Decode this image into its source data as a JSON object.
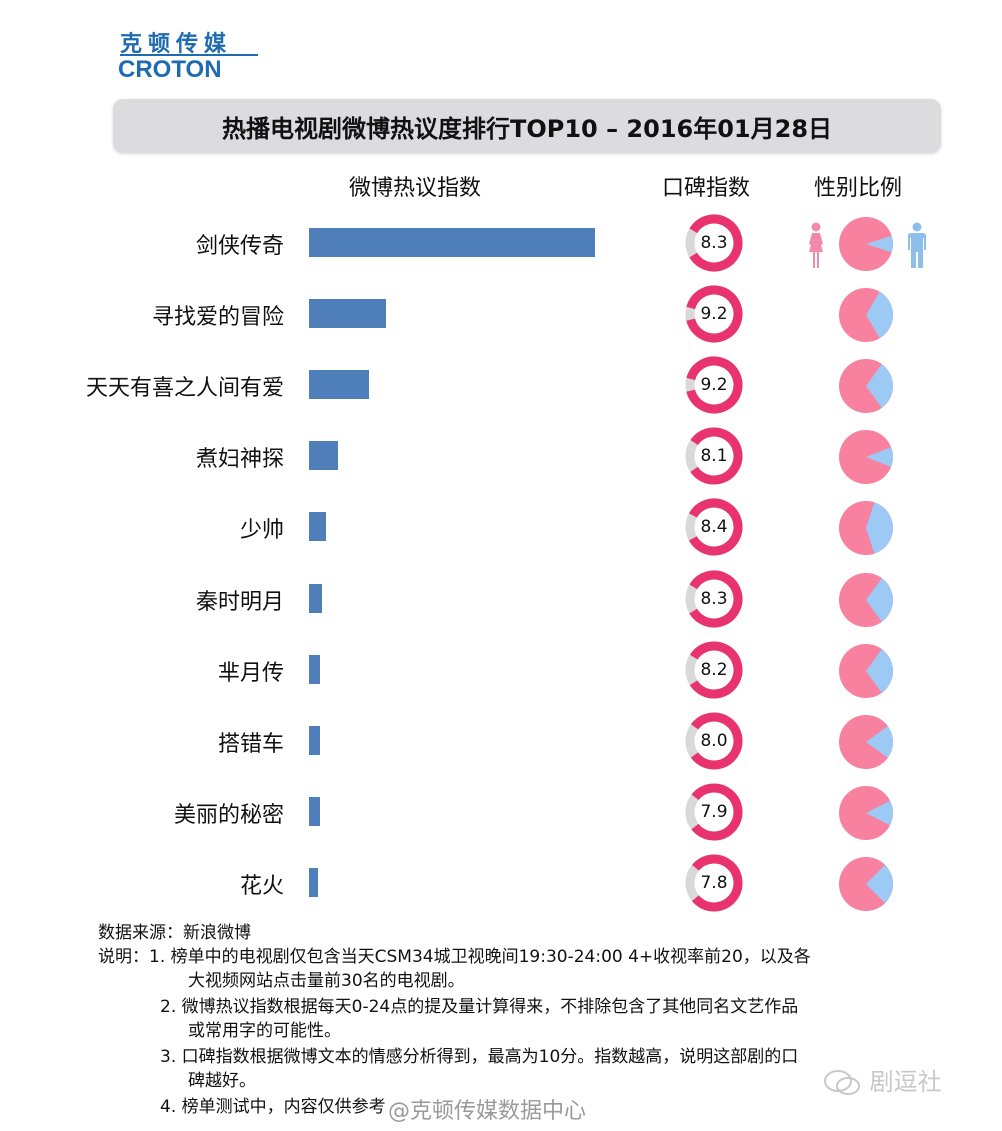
{
  "logo": {
    "cn": "克顿传媒",
    "en": "CROTON",
    "brand_color": "#1f6bb0"
  },
  "title": "热播电视剧微博热议度排行TOP10 – 2016年01月28日",
  "columns": {
    "weibo": "微博热议指数",
    "reputation": "口碑指数",
    "gender": "性别比例"
  },
  "legend_icons": {
    "female": "female-icon",
    "male": "male-icon"
  },
  "colors": {
    "bar": "#4f7fbb",
    "donut_fill": "#e8336f",
    "donut_rest": "#d9d9d9",
    "female": "#f7819f",
    "male": "#9ccaf5"
  },
  "rows": [
    {
      "name": "剑侠传奇",
      "score": "8.3"
    },
    {
      "name": "寻找爱的冒险",
      "score": "9.2"
    },
    {
      "name": "天天有喜之人间有爱",
      "score": "9.2"
    },
    {
      "name": "煮妇神探",
      "score": "8.1"
    },
    {
      "name": "少帅",
      "score": "8.4"
    },
    {
      "name": "秦时明月",
      "score": "8.3"
    },
    {
      "name": "芈月传",
      "score": "8.2"
    },
    {
      "name": "搭错车",
      "score": "8.0"
    },
    {
      "name": "美丽的秘密",
      "score": "7.9"
    },
    {
      "name": "花火",
      "score": "7.8"
    }
  ],
  "notes": {
    "source": "数据来源：新浪微博",
    "lines": [
      "说明：1.  榜单中的电视剧仅包含当天CSM34城卫视晚间19:30-24:00 4+收视率前20，以及各",
      "大视频网站点击量前30名的电视剧。",
      "2.  微博热议指数根据每天0-24点的提及量计算得来，不排除包含了其他同名文艺作品",
      "或常用字的可能性。",
      "3.  口碑指数根据微博文本的情感分析得到，最高为10分。指数越高，说明这部剧的口",
      "碑越好。",
      "4.  榜单测试中，内容仅供参考"
    ]
  },
  "watermarks": {
    "weibo": "@克顿传媒数据中心",
    "wechat": "剧逗社"
  },
  "chart_data": [
    {
      "type": "bar",
      "title": "微博热议指数",
      "orientation": "horizontal",
      "categories": [
        "剑侠传奇",
        "寻找爱的冒险",
        "天天有喜之人间有爱",
        "煮妇神探",
        "少帅",
        "秦时明月",
        "芈月传",
        "搭错车",
        "美丽的秘密",
        "花火"
      ],
      "values": [
        100,
        27,
        21,
        10,
        6,
        4.5,
        4,
        3.8,
        3.8,
        3.2
      ],
      "xlabel": "",
      "ylabel": "",
      "note": "relative values estimated from bar lengths (max = 100); no axis shown"
    },
    {
      "type": "pie",
      "subtype": "donut",
      "title": "口碑指数",
      "categories": [
        "剑侠传奇",
        "寻找爱的冒险",
        "天天有喜之人间有爱",
        "煮妇神探",
        "少帅",
        "秦时明月",
        "芈月传",
        "搭错车",
        "美丽的秘密",
        "花火"
      ],
      "values": [
        8.3,
        9.2,
        9.2,
        8.1,
        8.4,
        8.3,
        8.2,
        8.0,
        7.9,
        7.8
      ],
      "max": 10
    },
    {
      "type": "pie",
      "title": "性别比例",
      "categories": [
        "剑侠传奇",
        "寻找爱的冒险",
        "天天有喜之人间有爱",
        "煮妇神探",
        "少帅",
        "秦时明月",
        "芈月传",
        "搭错车",
        "美丽的秘密",
        "花火"
      ],
      "series": [
        {
          "name": "女",
          "values": [
            90,
            67,
            70,
            88,
            60,
            70,
            70,
            80,
            85,
            75
          ]
        },
        {
          "name": "男",
          "values": [
            10,
            33,
            30,
            12,
            40,
            30,
            30,
            20,
            15,
            25
          ]
        }
      ],
      "note": "percentages estimated from wedge angles"
    }
  ]
}
